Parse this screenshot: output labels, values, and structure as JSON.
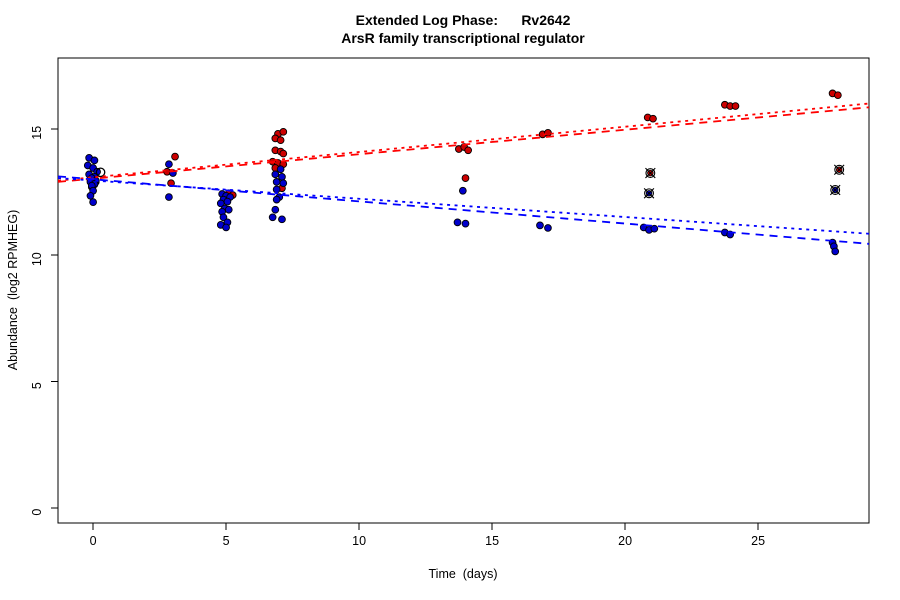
{
  "figure": {
    "background": "#ffffff"
  },
  "chart_data": {
    "type": "scatter",
    "title": "Extended Log Phase:      Rv2642",
    "subtitle": "ArsR family transcriptional regulator",
    "xlabel": "Time  (days)",
    "ylabel": "Abundance  (log2 RPMHEG)",
    "xlim": [
      -1.32,
      29.17
    ],
    "ylim": [
      -0.59,
      17.8
    ],
    "xticks": [
      0,
      5,
      10,
      15,
      20,
      25
    ],
    "yticks": [
      0,
      5,
      10,
      15
    ],
    "grid": false,
    "legend": "none",
    "colors": {
      "point_red": "#CC0000",
      "point_blue": "#0000CC",
      "line_red": "#FF0000",
      "line_blue": "#0000FF",
      "outline": "#000000"
    },
    "series": [
      {
        "name": "red-condition",
        "color_key": "point_red",
        "points": [
          [
            -0.1,
            13.0
          ],
          [
            0.1,
            12.9
          ],
          [
            0.05,
            12.8
          ],
          [
            -0.05,
            12.7
          ],
          [
            3.08,
            13.9
          ],
          [
            2.78,
            13.3
          ],
          [
            2.93,
            12.85
          ],
          [
            5.1,
            12.45
          ],
          [
            5.25,
            12.38
          ],
          [
            6.95,
            14.8
          ],
          [
            7.15,
            14.88
          ],
          [
            6.85,
            14.62
          ],
          [
            7.05,
            14.55
          ],
          [
            6.85,
            14.15
          ],
          [
            7.05,
            14.1
          ],
          [
            7.15,
            14.02
          ],
          [
            6.75,
            13.7
          ],
          [
            6.95,
            13.65
          ],
          [
            7.15,
            13.6
          ],
          [
            6.85,
            13.45
          ],
          [
            7.1,
            12.65
          ],
          [
            13.75,
            14.2
          ],
          [
            13.95,
            14.28
          ],
          [
            14.1,
            14.15
          ],
          [
            14.0,
            13.05
          ],
          [
            16.9,
            14.78
          ],
          [
            17.1,
            14.84
          ],
          [
            20.85,
            15.45
          ],
          [
            21.05,
            15.4
          ],
          [
            23.75,
            15.95
          ],
          [
            23.95,
            15.9
          ],
          [
            24.15,
            15.9
          ],
          [
            27.8,
            16.4
          ],
          [
            28.0,
            16.33
          ]
        ]
      },
      {
        "name": "blue-condition",
        "color_key": "point_blue",
        "points": [
          [
            -0.15,
            13.85
          ],
          [
            0.05,
            13.75
          ],
          [
            -0.2,
            13.55
          ],
          [
            0.0,
            13.45
          ],
          [
            0.15,
            13.3
          ],
          [
            -0.15,
            13.2
          ],
          [
            0.05,
            13.1
          ],
          [
            -0.05,
            13.05
          ],
          [
            0.1,
            12.95
          ],
          [
            -0.1,
            12.9
          ],
          [
            0.05,
            12.82
          ],
          [
            -0.05,
            12.75
          ],
          [
            0.0,
            12.55
          ],
          [
            -0.1,
            12.35
          ],
          [
            0.0,
            12.1
          ],
          [
            2.85,
            13.6
          ],
          [
            3.0,
            13.25
          ],
          [
            2.85,
            12.3
          ],
          [
            4.85,
            12.42
          ],
          [
            5.0,
            12.35
          ],
          [
            5.15,
            12.3
          ],
          [
            4.9,
            12.2
          ],
          [
            5.05,
            12.12
          ],
          [
            4.8,
            12.05
          ],
          [
            4.95,
            11.85
          ],
          [
            5.1,
            11.8
          ],
          [
            4.85,
            11.72
          ],
          [
            4.9,
            11.5
          ],
          [
            5.05,
            11.3
          ],
          [
            4.8,
            11.2
          ],
          [
            5.0,
            11.1
          ],
          [
            7.05,
            13.4
          ],
          [
            6.85,
            13.2
          ],
          [
            7.1,
            13.1
          ],
          [
            6.9,
            12.9
          ],
          [
            7.15,
            12.85
          ],
          [
            6.9,
            12.6
          ],
          [
            7.0,
            12.3
          ],
          [
            6.9,
            12.2
          ],
          [
            6.85,
            11.8
          ],
          [
            6.75,
            11.5
          ],
          [
            7.1,
            11.42
          ],
          [
            13.9,
            12.55
          ],
          [
            13.7,
            11.3
          ],
          [
            14.0,
            11.25
          ],
          [
            16.8,
            11.18
          ],
          [
            17.1,
            11.08
          ],
          [
            20.7,
            11.1
          ],
          [
            20.9,
            11.0
          ],
          [
            21.1,
            11.05
          ],
          [
            23.75,
            10.9
          ],
          [
            23.95,
            10.82
          ],
          [
            27.8,
            10.5
          ],
          [
            27.85,
            10.35
          ],
          [
            27.9,
            10.15
          ]
        ]
      }
    ],
    "open_points": [
      {
        "x": 0.28,
        "y": 13.28
      }
    ],
    "circled_points": [
      {
        "x": 20.95,
        "y": 13.25,
        "series": "red"
      },
      {
        "x": 20.9,
        "y": 12.45,
        "series": "blue"
      },
      {
        "x": 28.05,
        "y": 13.38,
        "series": "red"
      },
      {
        "x": 27.9,
        "y": 12.58,
        "series": "blue"
      }
    ],
    "trend_lines": [
      {
        "series": "red",
        "pattern": "dashed",
        "from": [
          -1.32,
          12.9
        ],
        "to": [
          29.17,
          15.85
        ]
      },
      {
        "series": "red",
        "pattern": "dotted",
        "from": [
          -1.32,
          12.95
        ],
        "to": [
          29.17,
          16.0
        ]
      },
      {
        "series": "blue",
        "pattern": "dashed",
        "from": [
          -1.32,
          13.12
        ],
        "to": [
          29.17,
          10.45
        ]
      },
      {
        "series": "blue",
        "pattern": "dotted",
        "from": [
          -1.32,
          13.05
        ],
        "to": [
          29.17,
          10.85
        ]
      }
    ]
  }
}
